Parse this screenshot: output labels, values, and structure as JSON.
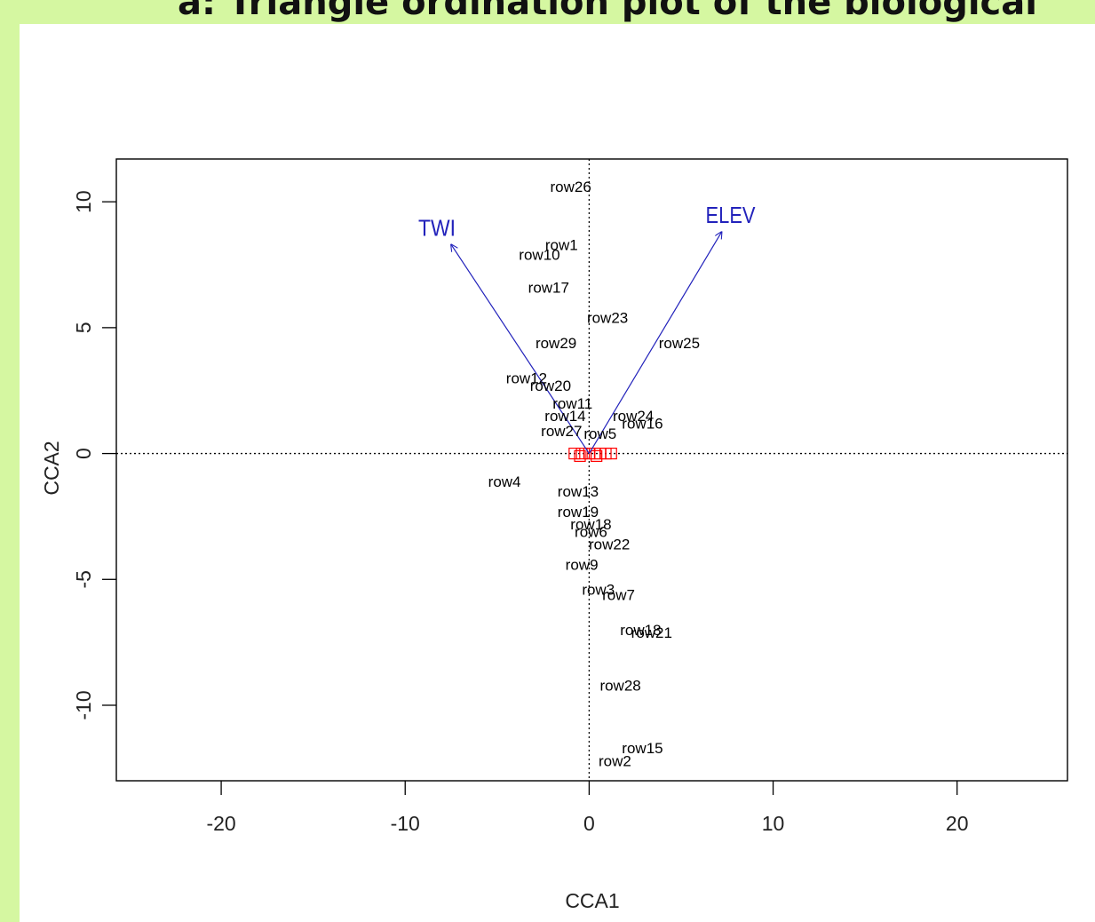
{
  "page": {
    "title": "a: Triangle ordination plot of the biological",
    "background_color": "#d5f7a1"
  },
  "chart_data": {
    "type": "scatter",
    "xlabel": "CCA1",
    "ylabel": "CCA2",
    "xlim": [
      -25.7,
      26.0
    ],
    "ylim": [
      -13.0,
      11.7
    ],
    "xticks": [
      -20,
      -10,
      0,
      10,
      20
    ],
    "yticks": [
      -10,
      -5,
      0,
      5,
      10
    ],
    "ytick_labels_rotated": true,
    "reference_lines": {
      "x": 0,
      "y": 0,
      "style": "dotted"
    },
    "grid": false,
    "colors": {
      "sites": "#000000",
      "species": "#ff0000",
      "biplot": "#2222bb"
    },
    "sites": [
      {
        "label": "row26",
        "x": -1.0,
        "y": 10.6
      },
      {
        "label": "row1",
        "x": -1.5,
        "y": 8.3
      },
      {
        "label": "row10",
        "x": -2.7,
        "y": 7.9
      },
      {
        "label": "row17",
        "x": -2.2,
        "y": 6.6
      },
      {
        "label": "row23",
        "x": 1.0,
        "y": 5.4
      },
      {
        "label": "row29",
        "x": -1.8,
        "y": 4.4
      },
      {
        "label": "row25",
        "x": 4.9,
        "y": 4.4
      },
      {
        "label": "row12",
        "x": -3.4,
        "y": 3.0
      },
      {
        "label": "row20",
        "x": -2.1,
        "y": 2.7
      },
      {
        "label": "row11",
        "x": -0.9,
        "y": 2.0
      },
      {
        "label": "row14",
        "x": -1.3,
        "y": 1.5
      },
      {
        "label": "row24",
        "x": 2.4,
        "y": 1.5
      },
      {
        "label": "row16",
        "x": 2.9,
        "y": 1.2
      },
      {
        "label": "row27",
        "x": -1.5,
        "y": 0.9
      },
      {
        "label": "row5",
        "x": 0.6,
        "y": 0.8
      },
      {
        "label": "row4",
        "x": -4.6,
        "y": -1.1
      },
      {
        "label": "row13",
        "x": -0.6,
        "y": -1.5
      },
      {
        "label": "row19",
        "x": -0.6,
        "y": -2.3
      },
      {
        "label": "row18",
        "x": 0.1,
        "y": -2.8
      },
      {
        "label": "row6",
        "x": 0.1,
        "y": -3.1
      },
      {
        "label": "row22",
        "x": 1.1,
        "y": -3.6
      },
      {
        "label": "row9",
        "x": -0.4,
        "y": -4.4
      },
      {
        "label": "row3",
        "x": 0.5,
        "y": -5.4
      },
      {
        "label": "row7",
        "x": 1.6,
        "y": -5.6
      },
      {
        "label": "row18",
        "x": 2.8,
        "y": -7.0
      },
      {
        "label": "row21",
        "x": 3.4,
        "y": -7.1
      },
      {
        "label": "row28",
        "x": 1.7,
        "y": -9.2
      },
      {
        "label": "row15",
        "x": 2.9,
        "y": -11.7
      },
      {
        "label": "row2",
        "x": 1.4,
        "y": -12.2
      }
    ],
    "species": [
      {
        "x": -0.8,
        "y": 0.0
      },
      {
        "x": -0.4,
        "y": 0.0
      },
      {
        "x": 0.0,
        "y": 0.0
      },
      {
        "x": 0.3,
        "y": 0.0
      },
      {
        "x": 0.6,
        "y": 0.0
      },
      {
        "x": 0.9,
        "y": 0.0
      },
      {
        "x": 1.2,
        "y": 0.0
      },
      {
        "x": -0.5,
        "y": -0.1
      },
      {
        "x": 0.4,
        "y": -0.1
      }
    ],
    "biplot": [
      {
        "label": "TWI",
        "x": -7.5,
        "y": 8.3
      },
      {
        "label": "ELEV",
        "x": 7.2,
        "y": 8.8
      }
    ]
  }
}
